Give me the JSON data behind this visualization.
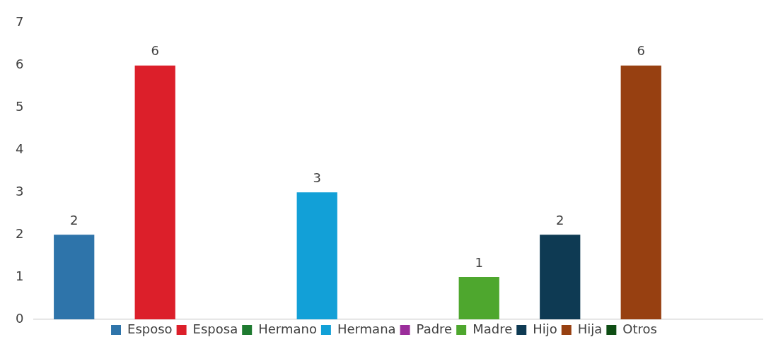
{
  "chart_data": {
    "type": "bar",
    "categories": [
      null
    ],
    "series": [
      {
        "name": "Esposo",
        "color": "#2e74aa",
        "values": [
          2
        ]
      },
      {
        "name": "Esposa",
        "color": "#dc1f2a",
        "values": [
          6
        ]
      },
      {
        "name": "Hermano",
        "color": "#1e7a30",
        "values": [
          null
        ]
      },
      {
        "name": "Hermana",
        "color": "#12a0d7",
        "values": [
          3
        ]
      },
      {
        "name": "Padre",
        "color": "#9b2d9b",
        "values": [
          null
        ]
      },
      {
        "name": "Madre",
        "color": "#4ea72e",
        "values": [
          1
        ]
      },
      {
        "name": "Hijo",
        "color": "#0e3a53",
        "values": [
          2
        ]
      },
      {
        "name": "Hija",
        "color": "#974011",
        "values": [
          6
        ]
      },
      {
        "name": "Otros",
        "color": "#0e4d14",
        "values": [
          null
        ]
      }
    ],
    "ylim": [
      0,
      7
    ],
    "yticks": [
      0,
      1,
      2,
      3,
      4,
      5,
      6,
      7
    ],
    "grid": false,
    "legend": "bottom",
    "data_labels": true,
    "tick_labels": "y"
  }
}
